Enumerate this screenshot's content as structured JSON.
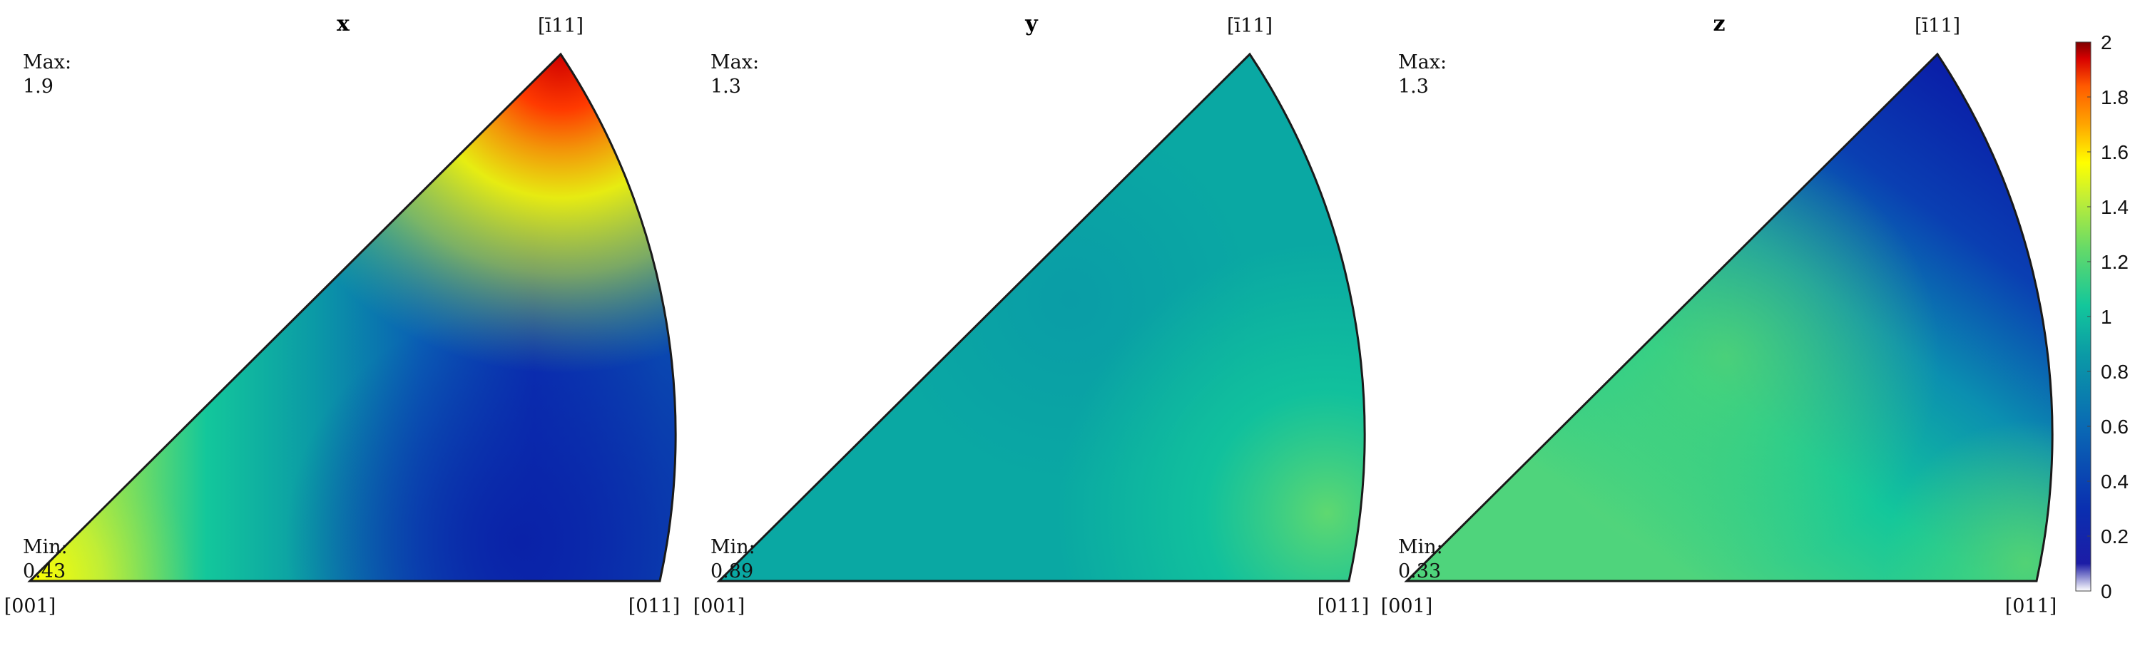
{
  "colormap": [
    "#ffffff",
    "#1c1ca6",
    "#0a2fb0",
    "#0a6ab4",
    "#0b9aa6",
    "#13c79b",
    "#62d96a",
    "#c6ef33",
    "#ffff00",
    "#ffa500",
    "#ff5a00",
    "#d70000",
    "#7f0000"
  ],
  "colormap_stops": [
    0,
    0.05,
    0.15,
    0.3,
    0.43,
    0.52,
    0.62,
    0.72,
    0.78,
    0.85,
    0.92,
    0.97,
    1.0
  ],
  "panels": [
    {
      "title": "x",
      "max_label": "Max:",
      "max_value": "1.9",
      "min_label": "Min:",
      "min_value": "0.43",
      "corner_001": "[001]",
      "corner_011": "[011]",
      "corner_111": "[ī11]"
    },
    {
      "title": "y",
      "max_label": "Max:",
      "max_value": "1.3",
      "min_label": "Min:",
      "min_value": "0.89",
      "corner_001": "[001]",
      "corner_011": "[011]",
      "corner_111": "[ī11]"
    },
    {
      "title": "z",
      "max_label": "Max:",
      "max_value": "1.3",
      "min_label": "Min:",
      "min_value": "0.33",
      "corner_001": "[001]",
      "corner_011": "[011]",
      "corner_111": "[ī11]"
    }
  ],
  "colorbar": {
    "min": 0,
    "max": 2,
    "ticks": [
      "0",
      "0.2",
      "0.4",
      "0.6",
      "0.8",
      "1",
      "1.2",
      "1.4",
      "1.6",
      "1.8",
      "2"
    ]
  }
}
